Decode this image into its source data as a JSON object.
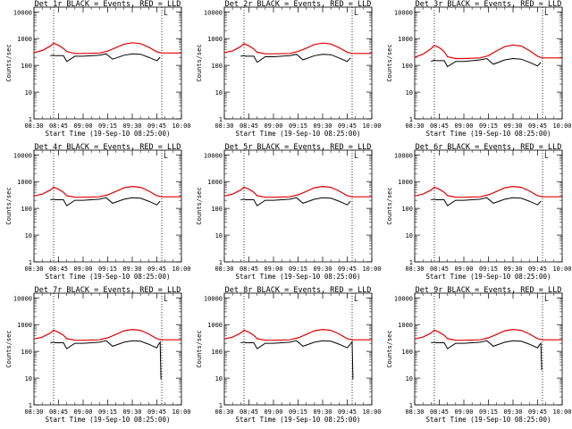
{
  "page": {
    "background": "#ffffff"
  },
  "colors": {
    "events": "#000000",
    "lld": "#e00000",
    "axes": "#000000"
  },
  "shared": {
    "xlabel": "Start Time (19-Sep-10 08:25:00)",
    "ylabel": "Counts/sec",
    "xticks": [
      "08:30",
      "08:45",
      "09:00",
      "09:15",
      "09:30",
      "09:45",
      "10:00"
    ],
    "yticks": [
      "1",
      "10",
      "100",
      "1000",
      "10000"
    ],
    "xlim_minutes_after_0830": [
      0,
      90
    ],
    "ylim": [
      1,
      15000
    ],
    "yscale": "log",
    "dotted_markers_minutes_after_0830": [
      12,
      78
    ],
    "corner_marker": "L"
  },
  "chart_data": [
    {
      "type": "line",
      "title": "Det 1r  BLACK = Events, RED = LLD",
      "series": [
        {
          "color": "#e00000",
          "x": [
            0,
            5,
            10,
            12,
            15,
            18,
            20,
            25,
            30,
            40,
            45,
            50,
            55,
            60,
            65,
            70,
            75,
            78,
            80,
            85,
            90
          ],
          "y": [
            300,
            360,
            520,
            680,
            560,
            430,
            330,
            280,
            280,
            290,
            340,
            460,
            620,
            700,
            650,
            480,
            320,
            290,
            290,
            290,
            290
          ]
        },
        {
          "color": "#000000",
          "x": [
            10,
            12,
            13,
            18,
            20,
            25,
            30,
            40,
            44,
            48,
            55,
            60,
            65,
            70,
            75,
            77
          ],
          "y": [
            230,
            240,
            230,
            230,
            140,
            220,
            220,
            240,
            270,
            170,
            240,
            270,
            260,
            200,
            150,
            200
          ]
        }
      ]
    },
    {
      "type": "line",
      "title": "Det 2r  BLACK = Events, RED = LLD",
      "series": [
        {
          "color": "#e00000",
          "x": [
            0,
            5,
            10,
            12,
            15,
            18,
            20,
            25,
            30,
            40,
            45,
            50,
            55,
            60,
            65,
            70,
            75,
            78,
            80,
            85,
            90
          ],
          "y": [
            300,
            350,
            500,
            650,
            540,
            410,
            310,
            270,
            270,
            280,
            330,
            440,
            600,
            680,
            630,
            460,
            310,
            280,
            280,
            280,
            280
          ]
        },
        {
          "color": "#000000",
          "x": [
            10,
            12,
            13,
            18,
            20,
            25,
            30,
            40,
            44,
            48,
            55,
            60,
            65,
            70,
            75,
            77
          ],
          "y": [
            220,
            230,
            220,
            220,
            130,
            210,
            210,
            230,
            260,
            160,
            230,
            260,
            250,
            190,
            140,
            190
          ]
        }
      ]
    },
    {
      "type": "line",
      "title": "Det 3r  BLACK = Events, RED = LLD",
      "series": [
        {
          "color": "#e00000",
          "x": [
            0,
            5,
            10,
            12,
            15,
            18,
            20,
            25,
            30,
            40,
            45,
            50,
            55,
            60,
            65,
            70,
            75,
            78,
            80,
            85,
            90
          ],
          "y": [
            200,
            260,
            420,
            560,
            460,
            330,
            210,
            180,
            180,
            190,
            230,
            350,
            500,
            580,
            530,
            360,
            220,
            190,
            190,
            190,
            190
          ]
        },
        {
          "color": "#000000",
          "x": [
            10,
            12,
            13,
            18,
            20,
            25,
            30,
            40,
            44,
            48,
            55,
            60,
            65,
            70,
            75,
            77
          ],
          "y": [
            140,
            160,
            150,
            150,
            90,
            140,
            140,
            160,
            180,
            110,
            160,
            180,
            170,
            130,
            95,
            130
          ]
        }
      ]
    },
    {
      "type": "line",
      "title": "Det 4r  BLACK = Events, RED = LLD",
      "series": [
        {
          "color": "#e00000",
          "x": [
            0,
            5,
            10,
            12,
            15,
            18,
            20,
            25,
            30,
            40,
            45,
            50,
            55,
            60,
            65,
            70,
            75,
            78,
            80,
            85,
            90
          ],
          "y": [
            290,
            340,
            480,
            620,
            520,
            400,
            300,
            260,
            260,
            270,
            320,
            430,
            590,
            660,
            610,
            450,
            300,
            270,
            270,
            270,
            270
          ]
        },
        {
          "color": "#000000",
          "x": [
            10,
            12,
            13,
            18,
            20,
            25,
            30,
            40,
            44,
            48,
            55,
            60,
            65,
            70,
            75,
            77
          ],
          "y": [
            210,
            220,
            210,
            210,
            125,
            200,
            200,
            220,
            250,
            155,
            220,
            250,
            240,
            185,
            135,
            185
          ]
        }
      ]
    },
    {
      "type": "line",
      "title": "Det 5r  BLACK = Events, RED = LLD",
      "series": [
        {
          "color": "#e00000",
          "x": [
            0,
            5,
            10,
            12,
            15,
            18,
            20,
            25,
            30,
            40,
            45,
            50,
            55,
            60,
            65,
            70,
            75,
            78,
            80,
            85,
            90
          ],
          "y": [
            290,
            340,
            480,
            620,
            520,
            400,
            300,
            260,
            260,
            270,
            320,
            430,
            590,
            660,
            610,
            450,
            300,
            270,
            270,
            270,
            270
          ]
        },
        {
          "color": "#000000",
          "x": [
            10,
            12,
            13,
            18,
            20,
            25,
            30,
            40,
            44,
            48,
            55,
            60,
            65,
            70,
            75,
            77
          ],
          "y": [
            210,
            220,
            210,
            210,
            125,
            200,
            200,
            220,
            250,
            155,
            220,
            250,
            240,
            185,
            135,
            185
          ]
        }
      ]
    },
    {
      "type": "line",
      "title": "Det 6r  BLACK = Events, RED = LLD",
      "series": [
        {
          "color": "#e00000",
          "x": [
            0,
            5,
            10,
            12,
            15,
            18,
            20,
            25,
            30,
            40,
            45,
            50,
            55,
            60,
            65,
            70,
            75,
            78,
            80,
            85,
            90
          ],
          "y": [
            290,
            340,
            480,
            620,
            520,
            400,
            300,
            260,
            260,
            270,
            320,
            430,
            590,
            660,
            610,
            450,
            300,
            270,
            270,
            270,
            270
          ]
        },
        {
          "color": "#000000",
          "x": [
            10,
            12,
            13,
            18,
            20,
            25,
            30,
            40,
            44,
            48,
            55,
            60,
            65,
            70,
            75,
            77
          ],
          "y": [
            210,
            220,
            210,
            210,
            125,
            200,
            200,
            220,
            250,
            155,
            220,
            250,
            240,
            185,
            135,
            185
          ]
        }
      ]
    },
    {
      "type": "line",
      "title": "Det 7r  BLACK = Events, RED = LLD",
      "series": [
        {
          "color": "#e00000",
          "x": [
            0,
            5,
            10,
            12,
            15,
            18,
            20,
            25,
            30,
            40,
            45,
            50,
            55,
            60,
            65,
            70,
            75,
            78,
            80,
            85,
            90
          ],
          "y": [
            290,
            340,
            480,
            620,
            520,
            400,
            300,
            260,
            260,
            270,
            320,
            430,
            590,
            660,
            610,
            450,
            300,
            270,
            270,
            270,
            270
          ]
        },
        {
          "color": "#000000",
          "x": [
            10,
            12,
            13,
            18,
            20,
            25,
            30,
            40,
            44,
            48,
            55,
            60,
            65,
            70,
            75,
            76,
            77,
            77.5
          ],
          "y": [
            210,
            220,
            210,
            210,
            125,
            200,
            200,
            220,
            250,
            155,
            220,
            250,
            240,
            185,
            135,
            180,
            220,
            9
          ]
        }
      ]
    },
    {
      "type": "line",
      "title": "Det 8r  BLACK = Events, RED = LLD",
      "series": [
        {
          "color": "#e00000",
          "x": [
            0,
            5,
            10,
            12,
            15,
            18,
            20,
            25,
            30,
            40,
            45,
            50,
            55,
            60,
            65,
            70,
            75,
            78,
            80,
            85,
            90
          ],
          "y": [
            290,
            340,
            480,
            620,
            520,
            400,
            300,
            260,
            260,
            270,
            320,
            430,
            590,
            660,
            610,
            450,
            300,
            270,
            270,
            270,
            270
          ]
        },
        {
          "color": "#000000",
          "x": [
            10,
            12,
            13,
            18,
            20,
            25,
            30,
            40,
            44,
            48,
            55,
            60,
            65,
            70,
            75,
            77,
            78,
            78.5
          ],
          "y": [
            210,
            220,
            210,
            210,
            125,
            200,
            200,
            220,
            250,
            155,
            220,
            250,
            240,
            185,
            135,
            190,
            230,
            9
          ]
        }
      ]
    },
    {
      "type": "line",
      "title": "Det 9r  BLACK = Events, RED = LLD",
      "series": [
        {
          "color": "#e00000",
          "x": [
            0,
            5,
            10,
            12,
            15,
            18,
            20,
            25,
            30,
            40,
            45,
            50,
            55,
            60,
            65,
            70,
            75,
            78,
            80,
            85,
            90
          ],
          "y": [
            290,
            340,
            480,
            620,
            520,
            400,
            300,
            260,
            260,
            270,
            320,
            430,
            590,
            660,
            610,
            450,
            300,
            270,
            270,
            270,
            270
          ]
        },
        {
          "color": "#000000",
          "x": [
            10,
            12,
            13,
            18,
            20,
            25,
            30,
            40,
            44,
            48,
            55,
            60,
            65,
            70,
            75,
            76,
            77,
            77.5
          ],
          "y": [
            210,
            220,
            210,
            210,
            125,
            200,
            200,
            220,
            250,
            155,
            220,
            250,
            240,
            185,
            135,
            170,
            200,
            20
          ]
        }
      ]
    }
  ]
}
